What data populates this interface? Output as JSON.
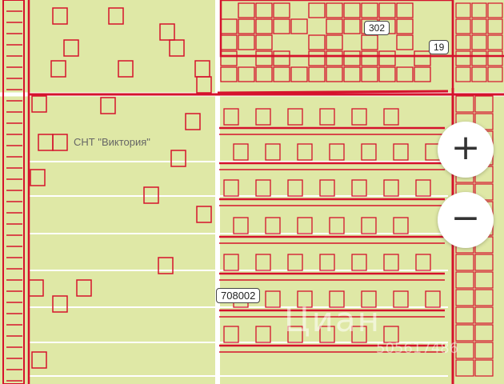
{
  "map": {
    "place_label": "СНТ \"Виктория\"",
    "parcel_tags": [
      "302",
      "19",
      "708002"
    ],
    "watermark": "Циан",
    "watermark_number": "505617486",
    "colors": {
      "land": "#dfe8a6",
      "parcel_border": "#d5122c",
      "road": "#ffffff"
    }
  },
  "controls": {
    "zoom_in_label": "+",
    "zoom_out_label": "−"
  }
}
